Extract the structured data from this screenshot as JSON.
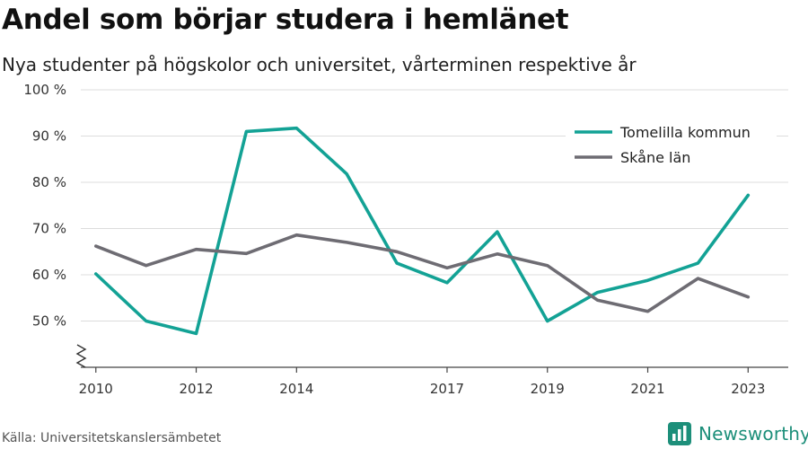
{
  "chart_data": {
    "type": "line",
    "title": "Andel som börjar studera i hemlänet",
    "subtitle": "Nya studenter på högskolor och universitet, vårterminen respektive år",
    "x": [
      2010,
      2011,
      2012,
      2013,
      2014,
      2015,
      2016,
      2017,
      2018,
      2019,
      2020,
      2021,
      2022,
      2023
    ],
    "x_ticks": [
      2010,
      2012,
      2014,
      2017,
      2019,
      2021,
      2023
    ],
    "y_ticks": [
      50,
      60,
      70,
      80,
      90,
      100
    ],
    "y_tick_labels": [
      "50 %",
      "60 %",
      "70 %",
      "80 %",
      "90 %",
      "100 %"
    ],
    "ylim": [
      40,
      100
    ],
    "axis_break": true,
    "grid": true,
    "legend_position": "top-right",
    "series": [
      {
        "name": "Tomelilla kommun",
        "color": "#13a295",
        "values": [
          60.2,
          50.0,
          47.3,
          91.0,
          91.7,
          81.8,
          62.5,
          58.3,
          69.3,
          50.0,
          56.2,
          58.8,
          62.5,
          77.2
        ]
      },
      {
        "name": "Skåne län",
        "color": "#6e6c73",
        "values": [
          66.2,
          62.0,
          65.5,
          64.6,
          68.6,
          67.0,
          65.0,
          61.5,
          64.5,
          62.0,
          54.5,
          52.1,
          59.2,
          55.2
        ]
      }
    ]
  },
  "source": "Källa: Universitetskanslersämbetet",
  "brand": {
    "name": "Newsworthy",
    "icon": "bar-chart-icon",
    "color": "#1d8f7a"
  }
}
